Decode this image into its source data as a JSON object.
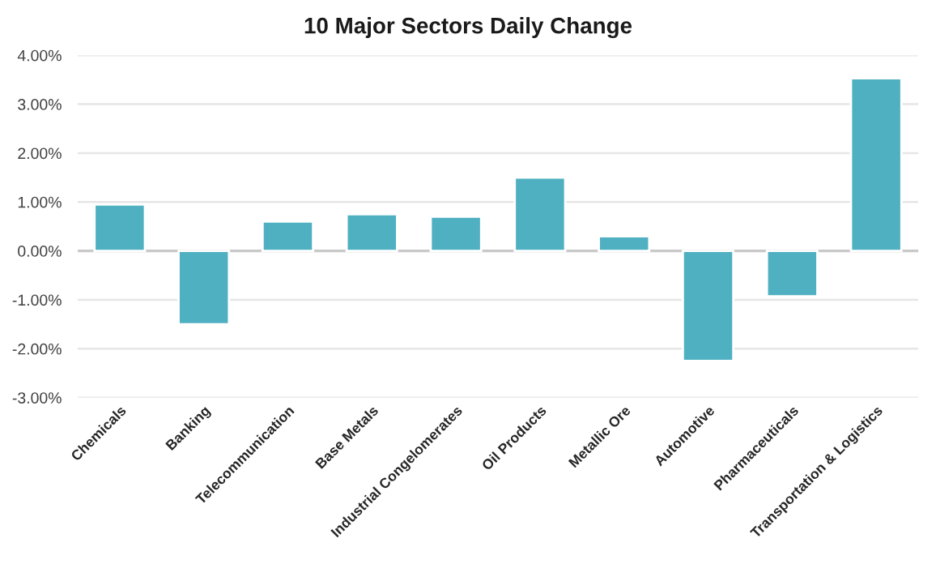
{
  "chart_data": {
    "type": "bar",
    "title": "10 Major Sectors Daily Change",
    "categories": [
      "Chemicals",
      "Banking",
      "Telecommunication",
      "Base Metals",
      "Industrial Congelomerates",
      "Oil Products",
      "Metallic Ore",
      "Automotive",
      "Pharmaceuticals",
      "Transportation & Logistics"
    ],
    "values": [
      0.95,
      -1.5,
      0.6,
      0.75,
      0.7,
      1.5,
      0.3,
      -2.25,
      -0.93,
      3.53
    ],
    "color": "#4fb0c1",
    "ylim": [
      -3,
      4
    ],
    "yticks": [
      {
        "value": -3,
        "label": "-3.00%"
      },
      {
        "value": -2,
        "label": "-2.00%"
      },
      {
        "value": -1,
        "label": "-1.00%"
      },
      {
        "value": 0,
        "label": "0.00%"
      },
      {
        "value": 1,
        "label": "1.00%"
      },
      {
        "value": 2,
        "label": "2.00%"
      },
      {
        "value": 3,
        "label": "3.00%"
      },
      {
        "value": 4,
        "label": "4.00%"
      }
    ],
    "grid": "y"
  }
}
